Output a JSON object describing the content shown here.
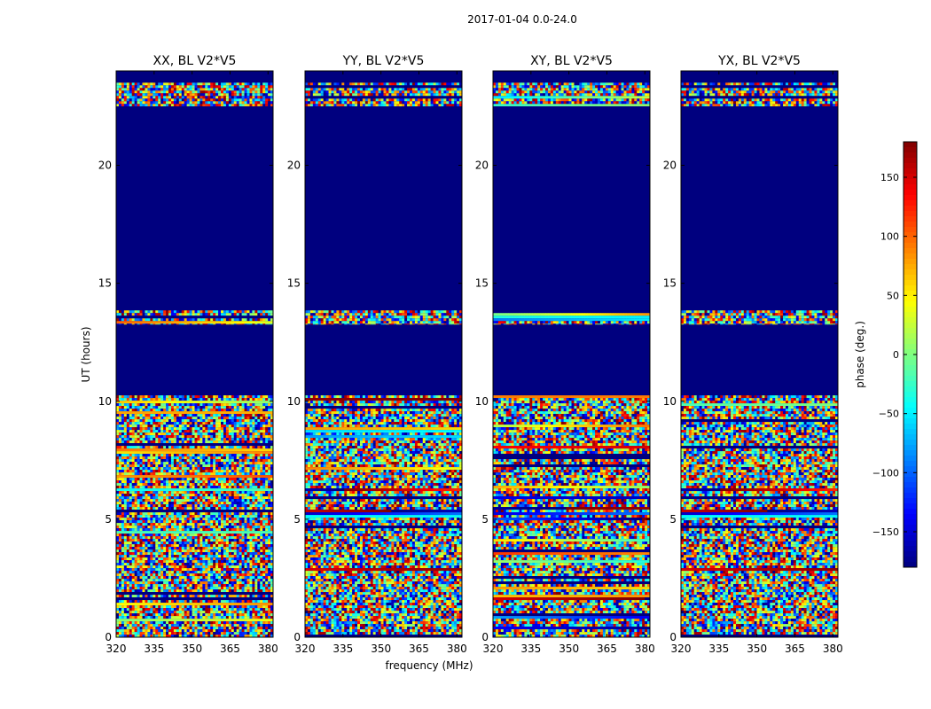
{
  "suptitle": "2017-01-04 0.0-24.0",
  "xlabel": "frequency (MHz)",
  "ylabel": "UT (hours)",
  "colorbar": {
    "label": "phase (deg.)",
    "range": [
      -180,
      180
    ],
    "ticks": [
      150,
      100,
      50,
      0,
      -50,
      -100,
      -150
    ],
    "tick_labels": [
      "150",
      "100",
      "50",
      "0",
      "−50",
      "−100",
      "−150"
    ],
    "colormap": "jet",
    "colors": [
      "#00007f",
      "#0000ff",
      "#007fff",
      "#00ffff",
      "#7fff7f",
      "#ffff00",
      "#ff7f00",
      "#ff0000",
      "#7f0000"
    ]
  },
  "chart_data": {
    "type": "heatmap",
    "x": {
      "label": "frequency (MHz)",
      "range": [
        320,
        382
      ],
      "ticks": [
        320,
        335,
        350,
        365,
        380
      ]
    },
    "y": {
      "label": "UT (hours)",
      "range": [
        0,
        24
      ],
      "ticks": [
        0,
        5,
        10,
        15,
        20
      ]
    },
    "z": {
      "label": "phase (deg.)",
      "range": [
        -180,
        180
      ]
    },
    "baseline": "V2*V5",
    "panels": [
      {
        "title": "XX, BL V2*V5",
        "polarization": "XX"
      },
      {
        "title": "YY, BL V2*V5",
        "polarization": "YY"
      },
      {
        "title": "XY, BL V2*V5",
        "polarization": "XY"
      },
      {
        "title": "YX, BL V2*V5",
        "polarization": "YX"
      }
    ],
    "data_intervals_ut": [
      [
        0.0,
        10.25
      ],
      [
        13.25,
        13.85
      ],
      [
        22.5,
        23.5
      ]
    ],
    "flagged_value": -180
  }
}
